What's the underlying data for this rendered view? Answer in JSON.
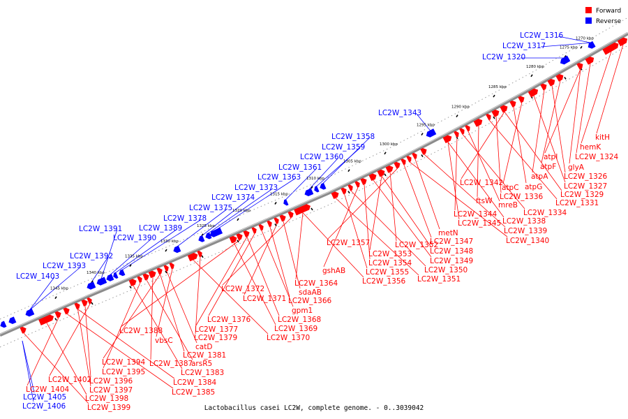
{
  "caption": "Lactobacillus casei LC2W, complete genome. - 0..3039042",
  "colors": {
    "forward": "#ff0000",
    "reverse": "#0000ff",
    "axis": "#8c8c8c"
  },
  "legend": [
    {
      "label": "Forward",
      "strand": "forward"
    },
    {
      "label": "Reverse",
      "strand": "reverse"
    }
  ],
  "ticks": [
    {
      "label": "1270 kbp",
      "kbp": 1270
    },
    {
      "label": "1275 kbp",
      "kbp": 1275
    },
    {
      "label": "1280 kbp",
      "kbp": 1280
    },
    {
      "label": "1285 kbp",
      "kbp": 1285
    },
    {
      "label": "1290 kbp",
      "kbp": 1290
    },
    {
      "label": "1295 kbp",
      "kbp": 1295
    },
    {
      "label": "1300 kbp",
      "kbp": 1300
    },
    {
      "label": "1305 kbp",
      "kbp": 1305
    },
    {
      "label": "1310 kbp",
      "kbp": 1310
    },
    {
      "label": "1315 kbp",
      "kbp": 1315
    },
    {
      "label": "1320 kbp",
      "kbp": 1320
    },
    {
      "label": "1325 kbp",
      "kbp": 1325
    },
    {
      "label": "1330 kbp",
      "kbp": 1330
    },
    {
      "label": "1335 kbp",
      "kbp": 1335
    },
    {
      "label": "1340 kbp",
      "kbp": 1340
    },
    {
      "label": "1345 kbp",
      "kbp": 1345
    }
  ],
  "reverse_labels": [
    "LC2W_1316",
    "LC2W_1317",
    "LC2W_1320",
    "LC2W_1343",
    "LC2W_1358",
    "LC2W_1359",
    "LC2W_1360",
    "LC2W_1361",
    "LC2W_1363",
    "LC2W_1373",
    "LC2W_1374",
    "LC2W_1375",
    "LC2W_1378",
    "LC2W_1391",
    "LC2W_1389",
    "LC2W_1390",
    "LC2W_1392",
    "LC2W_1393",
    "LC2W_1403"
  ],
  "forward_labels": [
    "kitH",
    "hemK",
    "LC2W_1324",
    "atpI",
    "glyA",
    "atpF",
    "LC2W_1326",
    "atpA",
    "LC2W_1327",
    "atpC",
    "atpG",
    "LC2W_1329",
    "LC2W_1342",
    "LC2W_1336",
    "LC2W_1331",
    "ftsW",
    "mreB",
    "LC2W_1334",
    "LC2W_1344",
    "LC2W_1338",
    "LC2W_1345",
    "LC2W_1339",
    "metN",
    "LC2W_1340",
    "LC2W_1347",
    "LC2W_1357",
    "LC2W_1352",
    "LC2W_1348",
    "LC2W_1353",
    "LC2W_1349",
    "LC2W_1354",
    "gshAB",
    "LC2W_1350",
    "LC2W_1355",
    "LC2W_1351",
    "LC2W_1356",
    "LC2W_1364",
    "LC2W_1372",
    "sdaAB",
    "LC2W_1371",
    "LC2W_1366",
    "gpm1",
    "LC2W_1376",
    "LC2W_1368",
    "LC2W_1377",
    "LC2W_1388",
    "LC2W_1369",
    "LC2W_1379",
    "LC2W_1370",
    "vbsC",
    "catD",
    "LC2W_1381",
    "LC2W_1394",
    "LC2W_1387",
    "arsR5",
    "LC2W_1395",
    "LC2W_1383",
    "LC2W_1402",
    "LC2W_1396",
    "LC2W_1384",
    "LC2W_1397",
    "LC2W_1385",
    "LC2W_1404",
    "LC2W_1398",
    "LC2W_1399"
  ],
  "forward_tail_labels": [
    "LC2W_1405",
    "LC2W_1406"
  ]
}
